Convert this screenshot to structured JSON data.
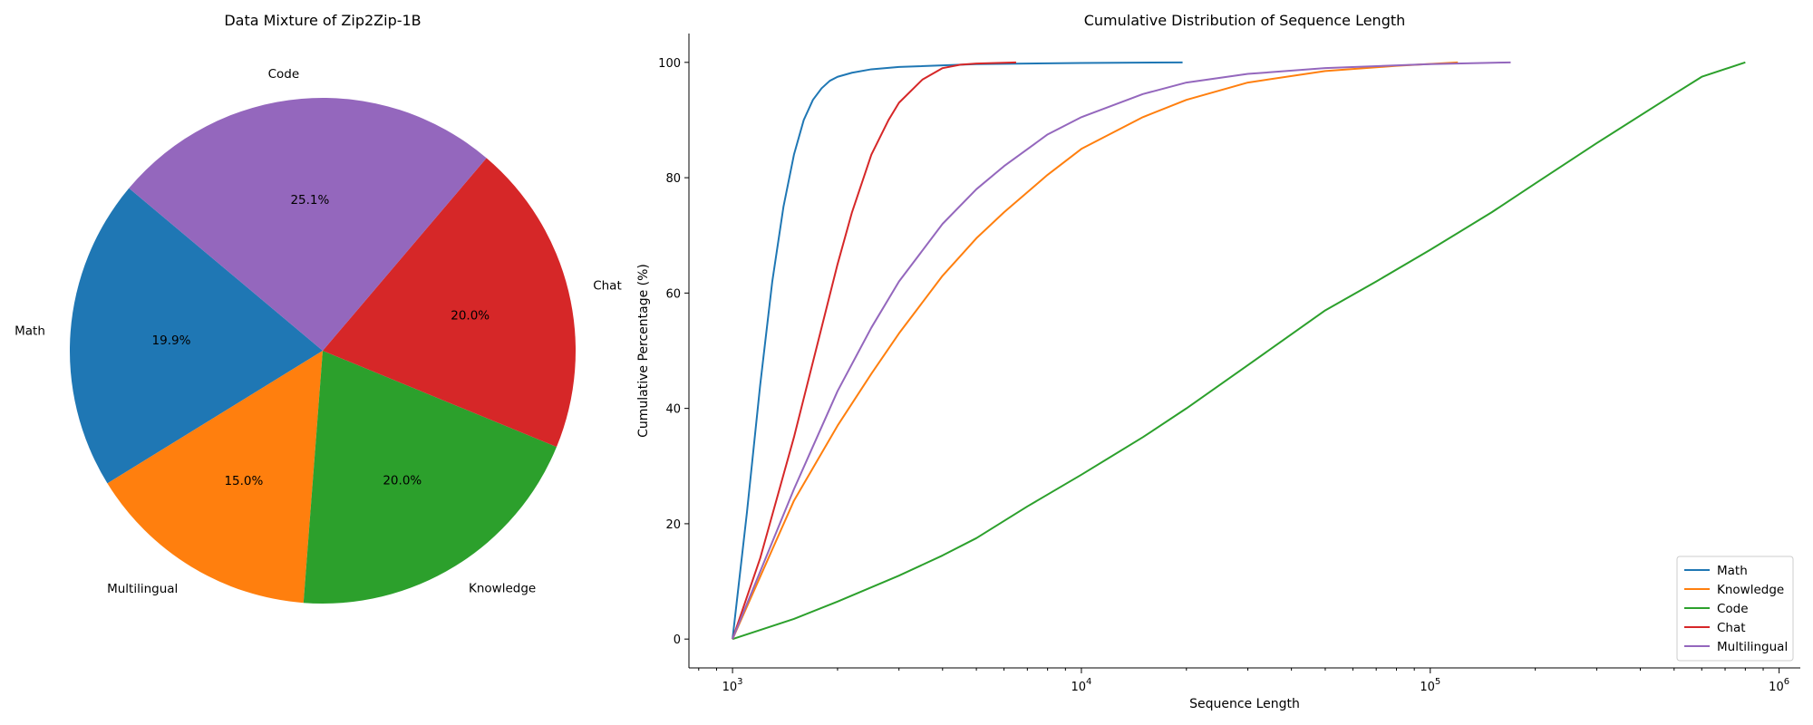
{
  "chart_data": [
    {
      "type": "pie",
      "title": "Data Mixture of Zip2Zip-1B",
      "slices": [
        {
          "label": "Math",
          "value": 19.9,
          "pct_label": "19.9%",
          "color": "#1f77b4"
        },
        {
          "label": "Multilingual",
          "value": 15.0,
          "pct_label": "15.0%",
          "color": "#ff7f0e"
        },
        {
          "label": "Knowledge",
          "value": 20.0,
          "pct_label": "20.0%",
          "color": "#2ca02c"
        },
        {
          "label": "Chat",
          "value": 20.0,
          "pct_label": "20.0%",
          "color": "#d62728"
        },
        {
          "label": "Code",
          "value": 25.1,
          "pct_label": "25.1%",
          "color": "#9467bd"
        }
      ]
    },
    {
      "type": "line",
      "title": "Cumulative Distribution of Sequence Length",
      "xlabel": "Sequence Length",
      "ylabel": "Cumulative Percentage (%)",
      "xscale": "log",
      "xlim": [
        750,
        1150000
      ],
      "ylim": [
        -5,
        105
      ],
      "xticks": [
        {
          "value": 1000,
          "base": "10",
          "exp": "3"
        },
        {
          "value": 10000,
          "base": "10",
          "exp": "4"
        },
        {
          "value": 100000,
          "base": "10",
          "exp": "5"
        },
        {
          "value": 1000000,
          "base": "10",
          "exp": "6"
        }
      ],
      "yticks": [
        "0",
        "20",
        "40",
        "60",
        "80",
        "100"
      ],
      "legend_position": "bottom-right",
      "series": [
        {
          "name": "Math",
          "color": "#1f77b4",
          "x": [
            1000,
            1100,
            1200,
            1300,
            1400,
            1500,
            1600,
            1700,
            1800,
            1900,
            2000,
            2200,
            2500,
            3000,
            5000,
            10000,
            19500
          ],
          "y": [
            0,
            22,
            44,
            62,
            75,
            84,
            90,
            93.5,
            95.5,
            96.8,
            97.5,
            98.2,
            98.8,
            99.2,
            99.7,
            99.9,
            100
          ]
        },
        {
          "name": "Knowledge",
          "color": "#ff7f0e",
          "x": [
            1000,
            1500,
            2000,
            2500,
            3000,
            4000,
            5000,
            6000,
            8000,
            10000,
            15000,
            20000,
            30000,
            50000,
            80000,
            120000
          ],
          "y": [
            0,
            24,
            37,
            46,
            53,
            63,
            69.5,
            74,
            80.5,
            85,
            90.5,
            93.5,
            96.5,
            98.5,
            99.4,
            100
          ]
        },
        {
          "name": "Code",
          "color": "#2ca02c",
          "x": [
            1000,
            1500,
            2000,
            3000,
            4000,
            5000,
            7000,
            10000,
            15000,
            20000,
            30000,
            50000,
            70000,
            100000,
            150000,
            200000,
            300000,
            500000,
            600000,
            800000
          ],
          "y": [
            0,
            3.5,
            6.5,
            11,
            14.5,
            17.5,
            23,
            28.5,
            35,
            40,
            47.5,
            57,
            62,
            67.5,
            74,
            79,
            86,
            94.5,
            97.5,
            100
          ]
        },
        {
          "name": "Chat",
          "color": "#d62728",
          "x": [
            1000,
            1200,
            1500,
            1800,
            2000,
            2200,
            2500,
            2800,
            3000,
            3500,
            4000,
            4500,
            5000,
            6500
          ],
          "y": [
            0,
            14,
            35,
            54,
            65,
            74,
            84,
            90,
            93,
            97,
            99,
            99.6,
            99.8,
            100
          ]
        },
        {
          "name": "Multilingual",
          "color": "#9467bd",
          "x": [
            1000,
            1500,
            2000,
            2500,
            3000,
            4000,
            5000,
            6000,
            8000,
            10000,
            15000,
            20000,
            30000,
            50000,
            100000,
            170000
          ],
          "y": [
            0,
            26,
            43,
            54,
            62,
            72,
            78,
            82,
            87.5,
            90.5,
            94.5,
            96.5,
            98,
            99,
            99.7,
            100
          ]
        }
      ]
    }
  ]
}
